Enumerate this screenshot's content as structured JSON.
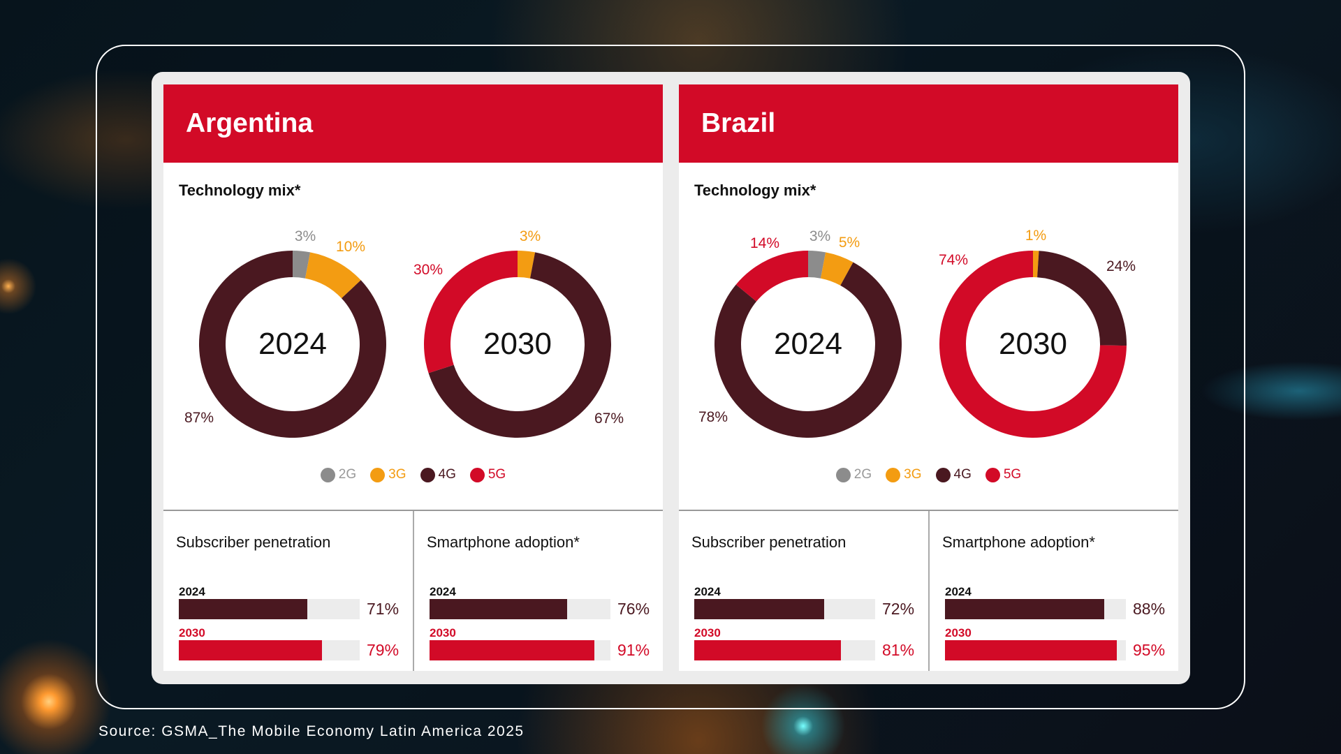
{
  "colors": {
    "2G": "#8c8c8c",
    "3G": "#f39c12",
    "4G": "#4a1820",
    "5G": "#d20a27",
    "track": "#ececec"
  },
  "chart_data": [
    {
      "type": "pie",
      "country": "Argentina",
      "title": "Technology mix*",
      "center_label": "2024",
      "categories": [
        "2G",
        "3G",
        "4G",
        "5G"
      ],
      "values": [
        3,
        10,
        87,
        0
      ],
      "labels": [
        "3%",
        "10%",
        "87%",
        ""
      ]
    },
    {
      "type": "pie",
      "country": "Argentina",
      "title": "Technology mix*",
      "center_label": "2030",
      "categories": [
        "2G",
        "3G",
        "4G",
        "5G"
      ],
      "values": [
        0,
        3,
        67,
        30
      ],
      "labels": [
        "",
        "3%",
        "67%",
        "30%"
      ]
    },
    {
      "type": "pie",
      "country": "Brazil",
      "title": "Technology mix*",
      "center_label": "2024",
      "categories": [
        "2G",
        "3G",
        "4G",
        "5G"
      ],
      "values": [
        3,
        5,
        78,
        14
      ],
      "labels": [
        "3%",
        "5%",
        "78%",
        "14%"
      ]
    },
    {
      "type": "pie",
      "country": "Brazil",
      "title": "Technology mix*",
      "center_label": "2030",
      "categories": [
        "2G",
        "3G",
        "4G",
        "5G"
      ],
      "values": [
        0,
        1,
        24,
        74
      ],
      "labels": [
        "",
        "1%",
        "24%",
        "74%"
      ]
    },
    {
      "type": "bar",
      "country": "Argentina",
      "title": "Subscriber penetration",
      "categories": [
        "2024",
        "2030"
      ],
      "values": [
        71,
        79
      ],
      "labels": [
        "71%",
        "79%"
      ],
      "ylim": [
        0,
        100
      ]
    },
    {
      "type": "bar",
      "country": "Argentina",
      "title": "Smartphone adoption*",
      "categories": [
        "2024",
        "2030"
      ],
      "values": [
        76,
        91
      ],
      "labels": [
        "76%",
        "91%"
      ],
      "ylim": [
        0,
        100
      ]
    },
    {
      "type": "bar",
      "country": "Brazil",
      "title": "Subscriber penetration",
      "categories": [
        "2024",
        "2030"
      ],
      "values": [
        72,
        81
      ],
      "labels": [
        "72%",
        "81%"
      ],
      "ylim": [
        0,
        100
      ]
    },
    {
      "type": "bar",
      "country": "Brazil",
      "title": "Smartphone adoption*",
      "categories": [
        "2024",
        "2030"
      ],
      "values": [
        88,
        95
      ],
      "labels": [
        "88%",
        "95%"
      ],
      "ylim": [
        0,
        100
      ]
    }
  ],
  "panels": [
    {
      "country": "Argentina"
    },
    {
      "country": "Brazil"
    }
  ],
  "mix_title": "Technology mix*",
  "legend": [
    "2G",
    "3G",
    "4G",
    "5G"
  ],
  "source": "Source: GSMA_The Mobile Economy Latin America 2025"
}
